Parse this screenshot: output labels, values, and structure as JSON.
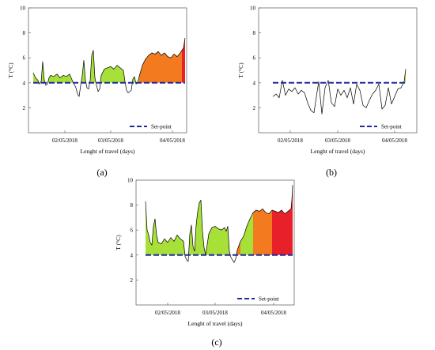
{
  "colors": {
    "setpoint": "#1f2a9c",
    "trace": "#000000",
    "green": "#a8e03a",
    "orange": "#f47a20",
    "red": "#e8202a",
    "frame": "#6b6b6b"
  },
  "chart_data": [
    {
      "type": "line",
      "panel_label": "(a)",
      "title": "",
      "xlabel": "Lenght of travel  (days)",
      "ylabel": "T (°C)",
      "ylim": [
        0,
        10
      ],
      "xlim": [
        0,
        1
      ],
      "yticks": [
        2,
        4,
        6,
        8,
        10
      ],
      "xtick_labels": [
        "02/05/2018",
        "03/05/2018",
        "04/05/2018"
      ],
      "xtick_positions": [
        0.23,
        0.52,
        0.91
      ],
      "setpoint": 4,
      "legend": "Set-point",
      "legend_position": "bottom-right",
      "series": [
        {
          "x": [
            0.03,
            0.045,
            0.06,
            0.07,
            0.08,
            0.09,
            0.1,
            0.11,
            0.12,
            0.13,
            0.14,
            0.16,
            0.18,
            0.2,
            0.22,
            0.24,
            0.26,
            0.28,
            0.3,
            0.31,
            0.32,
            0.33,
            0.34,
            0.35,
            0.36,
            0.37,
            0.38,
            0.39,
            0.4,
            0.41,
            0.42,
            0.43,
            0.44,
            0.45,
            0.46,
            0.48,
            0.5,
            0.52,
            0.54,
            0.56,
            0.58,
            0.6,
            0.61,
            0.62,
            0.63,
            0.64,
            0.65,
            0.66,
            0.67,
            0.68,
            0.69,
            0.7,
            0.72,
            0.74,
            0.76,
            0.78,
            0.8,
            0.82,
            0.84,
            0.86,
            0.88,
            0.9,
            0.92,
            0.94,
            0.96,
            0.97,
            0.98,
            0.99
          ],
          "y": [
            4.8,
            4.4,
            4.2,
            3.9,
            4.1,
            5.7,
            4.2,
            3.8,
            3.9,
            4.4,
            4.6,
            4.5,
            4.7,
            4.4,
            4.6,
            4.5,
            4.7,
            4.1,
            3.6,
            3.1,
            2.9,
            3.8,
            4.6,
            5.8,
            4.2,
            3.6,
            3.5,
            4.2,
            6.2,
            6.6,
            4.4,
            3.8,
            3.3,
            3.5,
            4.6,
            5.1,
            5.2,
            5.3,
            5.1,
            5.4,
            5.2,
            5.0,
            4.1,
            3.4,
            3.2,
            3.3,
            3.4,
            4.3,
            4.5,
            3.9,
            4.0,
            4.5,
            5.4,
            5.9,
            6.2,
            6.4,
            6.3,
            6.5,
            6.2,
            6.4,
            6.1,
            6.0,
            6.3,
            6.1,
            6.4,
            6.6,
            6.8,
            7.6
          ],
          "fills": [
            {
              "x0": 0.03,
              "x1": 0.7,
              "color": "green"
            },
            {
              "x0": 0.7,
              "x1": 0.97,
              "color": "orange"
            },
            {
              "x0": 0.97,
              "x1": 1.0,
              "color": "red"
            }
          ]
        }
      ]
    },
    {
      "type": "line",
      "panel_label": "(b)",
      "title": "",
      "xlabel": "Lenght of travel  (days)",
      "ylabel": "T (°C)",
      "ylim": [
        0,
        10
      ],
      "xlim": [
        0,
        1
      ],
      "yticks": [
        2,
        4,
        6,
        8,
        10
      ],
      "xtick_labels": [
        "02/05/2018",
        "03/05/2018",
        "04/05/2018"
      ],
      "xtick_positions": [
        0.2,
        0.5,
        0.86
      ],
      "setpoint": 4,
      "legend": "Set-point",
      "legend_position": "bottom-right",
      "series": [
        {
          "x": [
            0.09,
            0.11,
            0.13,
            0.15,
            0.17,
            0.19,
            0.21,
            0.23,
            0.25,
            0.27,
            0.29,
            0.31,
            0.33,
            0.35,
            0.37,
            0.38,
            0.4,
            0.42,
            0.44,
            0.46,
            0.48,
            0.5,
            0.52,
            0.54,
            0.56,
            0.58,
            0.6,
            0.62,
            0.64,
            0.66,
            0.68,
            0.7,
            0.72,
            0.74,
            0.76,
            0.78,
            0.8,
            0.82,
            0.84,
            0.86,
            0.88,
            0.9,
            0.92,
            0.93
          ],
          "y": [
            2.9,
            3.1,
            2.8,
            4.2,
            3.0,
            3.5,
            3.3,
            3.6,
            3.1,
            3.4,
            3.2,
            2.4,
            1.8,
            1.6,
            3.3,
            4.1,
            1.5,
            3.6,
            4.2,
            2.4,
            2.1,
            3.5,
            3.0,
            3.4,
            2.8,
            3.6,
            2.3,
            3.9,
            3.4,
            2.2,
            2.0,
            2.6,
            3.1,
            3.4,
            3.9,
            1.9,
            2.2,
            3.6,
            2.3,
            2.9,
            3.5,
            3.6,
            4.1,
            5.1
          ],
          "fills": [
            {
              "x0": 0.92,
              "x1": 0.93,
              "color": "green"
            }
          ]
        }
      ]
    },
    {
      "type": "line",
      "panel_label": "(c)",
      "title": "",
      "xlabel": "Lenght of travel  (days)",
      "ylabel": "T (°C)",
      "ylim": [
        0,
        10
      ],
      "xlim": [
        0,
        1
      ],
      "yticks": [
        2,
        4,
        6,
        8,
        10
      ],
      "xtick_labels": [
        "02/05/2018",
        "03/05/2018",
        "04/05/2018"
      ],
      "xtick_positions": [
        0.2,
        0.5,
        0.87
      ],
      "setpoint": 4,
      "legend": "Set-point",
      "legend_position": "bottom-right",
      "series": [
        {
          "x": [
            0.06,
            0.07,
            0.08,
            0.09,
            0.1,
            0.11,
            0.12,
            0.13,
            0.14,
            0.16,
            0.18,
            0.2,
            0.22,
            0.24,
            0.26,
            0.28,
            0.3,
            0.31,
            0.32,
            0.33,
            0.34,
            0.35,
            0.36,
            0.37,
            0.38,
            0.39,
            0.4,
            0.41,
            0.42,
            0.43,
            0.44,
            0.46,
            0.48,
            0.5,
            0.52,
            0.54,
            0.56,
            0.57,
            0.58,
            0.59,
            0.6,
            0.61,
            0.62,
            0.63,
            0.64,
            0.66,
            0.68,
            0.7,
            0.72,
            0.74,
            0.76,
            0.78,
            0.8,
            0.82,
            0.84,
            0.86,
            0.88,
            0.9,
            0.92,
            0.94,
            0.96,
            0.98,
            0.985,
            0.99
          ],
          "y": [
            8.3,
            6.0,
            5.6,
            5.0,
            4.8,
            6.3,
            6.9,
            5.6,
            5.0,
            4.9,
            5.3,
            5.0,
            5.4,
            5.1,
            5.6,
            5.3,
            5.1,
            3.9,
            3.6,
            3.5,
            5.7,
            6.4,
            4.7,
            4.3,
            6.4,
            7.5,
            8.2,
            8.4,
            5.9,
            4.6,
            4.0,
            5.7,
            6.2,
            6.3,
            6.1,
            6.0,
            6.2,
            5.9,
            6.3,
            4.3,
            3.8,
            3.6,
            3.4,
            3.7,
            4.4,
            5.1,
            5.5,
            6.3,
            6.9,
            7.4,
            7.6,
            7.5,
            7.7,
            7.4,
            7.3,
            7.6,
            7.5,
            7.4,
            7.6,
            7.3,
            7.5,
            7.7,
            8.4,
            9.6
          ],
          "fills": [
            {
              "x0": 0.06,
              "x1": 0.6,
              "color": "green"
            },
            {
              "x0": 0.6,
              "x1": 0.66,
              "color": "orange"
            },
            {
              "x0": 0.66,
              "x1": 0.74,
              "color": "green"
            },
            {
              "x0": 0.74,
              "x1": 0.86,
              "color": "orange"
            },
            {
              "x0": 0.86,
              "x1": 1.0,
              "color": "red"
            }
          ]
        }
      ]
    }
  ]
}
